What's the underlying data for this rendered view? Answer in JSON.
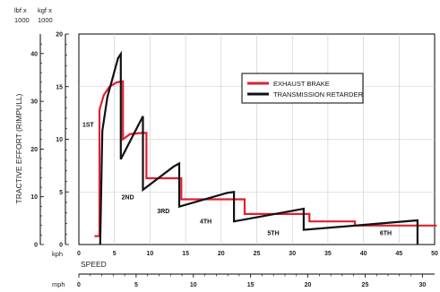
{
  "chart_data": {
    "type": "line",
    "title": "",
    "ylabel": "TRACTIVE EFFORT (RIMPULL)",
    "xlabel": "SPEED",
    "y_units": {
      "lbf": "lbf x 1000",
      "kgf": "kgf x 1000",
      "lbf_line1": "lbf x",
      "lbf_line2": "1000",
      "kgf_line1": "kgf x",
      "kgf_line2": "1000"
    },
    "x_units": {
      "kph": "kph",
      "mph": "mph"
    },
    "kgf_ticks": [
      0,
      5,
      10,
      15,
      20
    ],
    "lbf_ticks": [
      0,
      10,
      20,
      30,
      40
    ],
    "kph_ticks": [
      0,
      5,
      10,
      15,
      20,
      25,
      30,
      35,
      40,
      45,
      50
    ],
    "mph_ticks": [
      0,
      5,
      10,
      15,
      20,
      25,
      30
    ],
    "xlim_kph": [
      0,
      50
    ],
    "ylim_kgf": [
      0,
      20
    ],
    "legend_position": "top-right",
    "gear_labels": [
      {
        "text": "1ST",
        "x": 0.5,
        "y": 11.2
      },
      {
        "text": "2ND",
        "x": 6.0,
        "y": 4.3
      },
      {
        "text": "3RD",
        "x": 11.0,
        "y": 3.0
      },
      {
        "text": "4TH",
        "x": 17.0,
        "y": 2.0
      },
      {
        "text": "5TH",
        "x": 26.5,
        "y": 0.9
      },
      {
        "text": "6TH",
        "x": 42.3,
        "y": 0.9
      }
    ],
    "series": [
      {
        "name": "EXHAUST BRAKE",
        "color": "#e02030",
        "x": [
          2.2,
          2.9,
          2.9,
          3.5,
          4.3,
          5.3,
          6.0,
          6.2,
          6.2,
          7.2,
          9.0,
          9.5,
          9.5,
          14.4,
          14.4,
          23.3,
          23.3,
          32.4,
          32.4,
          38.8,
          38.8,
          50.3
        ],
        "y": [
          0.8,
          0.8,
          12.8,
          14.2,
          15.0,
          15.4,
          15.5,
          15.5,
          10.0,
          10.5,
          10.6,
          10.6,
          6.3,
          6.3,
          4.3,
          4.3,
          2.9,
          2.9,
          2.2,
          2.2,
          1.8,
          1.8
        ]
      },
      {
        "name": "TRANSMISSION RETARDER",
        "color": "#111111",
        "x": [
          3.0,
          3.3,
          3.3,
          4.0,
          5.5,
          5.9,
          5.9,
          9.0,
          9.0,
          13.3,
          14.1,
          14.1,
          20.8,
          21.8,
          21.8,
          31.6,
          31.6,
          47.6,
          47.6
        ],
        "y": [
          0,
          10.8,
          10.8,
          14.0,
          17.7,
          18.1,
          8.1,
          12.2,
          5.2,
          7.4,
          7.7,
          3.6,
          4.9,
          5.0,
          2.2,
          3.4,
          1.4,
          2.3,
          0
        ]
      }
    ]
  }
}
